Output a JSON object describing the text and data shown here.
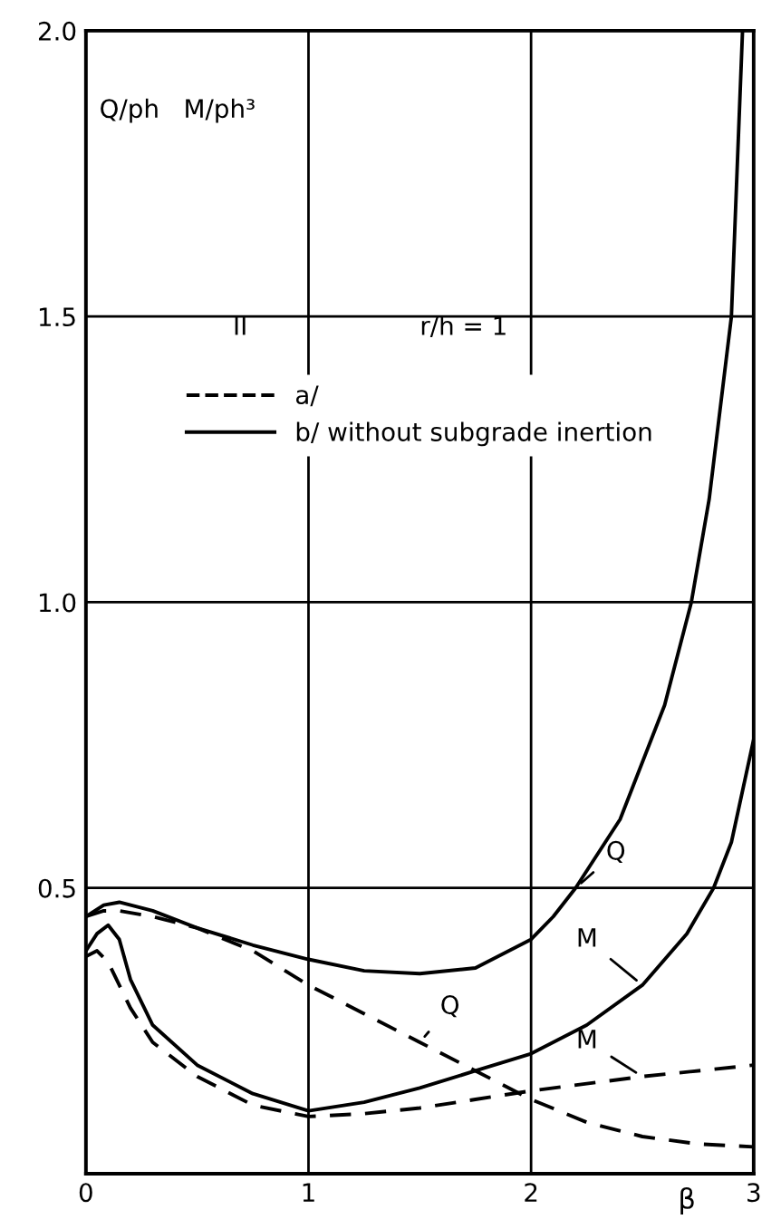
{
  "chart_data": {
    "type": "line",
    "xlabel": "β",
    "ylabel": "Q/ph   M/ph³",
    "annotations": [
      "II",
      "r/h = 1",
      {
        "text": "Q",
        "x": 2.2,
        "y": 0.5
      },
      {
        "text": "M",
        "x": 2.5,
        "y": 0.33
      },
      {
        "text": "Q",
        "x": 1.5,
        "y": 0.23
      },
      {
        "text": "M",
        "x": 2.5,
        "y": 0.17
      }
    ],
    "series": [
      {
        "name": "a/",
        "color": "#000000",
        "line_style": "dashed",
        "x": [
          0,
          0.08,
          0.15,
          0.3,
          0.5,
          0.75,
          1,
          1.25,
          1.5,
          1.75,
          2,
          2.25,
          2.5,
          2.75,
          3
        ],
        "values": [
          0.45,
          0.46,
          0.46,
          0.45,
          0.43,
          0.39,
          0.33,
          0.28,
          0.23,
          0.18,
          0.13,
          0.09,
          0.065,
          0.052,
          0.047
        ]
      },
      {
        "color": "#000000",
        "line_style": "dashed",
        "x": [
          0,
          0.05,
          0.1,
          0.15,
          0.2,
          0.3,
          0.5,
          0.75,
          1,
          1.25,
          1.5,
          1.75,
          2,
          2.5,
          3
        ],
        "values": [
          0.38,
          0.39,
          0.37,
          0.33,
          0.29,
          0.23,
          0.17,
          0.12,
          0.1,
          0.105,
          0.115,
          0.13,
          0.145,
          0.17,
          0.19
        ]
      },
      {
        "name": "b/ without subgrade inertion",
        "color": "#000000",
        "line_style": "solid",
        "x": [
          0,
          0.08,
          0.15,
          0.3,
          0.5,
          0.75,
          1,
          1.25,
          1.5,
          1.75,
          2,
          2.1,
          2.2,
          2.4,
          2.6,
          2.72,
          2.8,
          2.9,
          2.95
        ],
        "values": [
          0.45,
          0.47,
          0.475,
          0.46,
          0.43,
          0.4,
          0.375,
          0.355,
          0.35,
          0.36,
          0.41,
          0.45,
          0.5,
          0.62,
          0.82,
          1.0,
          1.18,
          1.5,
          2.0
        ]
      },
      {
        "color": "#000000",
        "line_style": "solid",
        "x": [
          0,
          0.05,
          0.1,
          0.15,
          0.2,
          0.3,
          0.5,
          0.75,
          1,
          1.25,
          1.5,
          1.75,
          2,
          2.25,
          2.5,
          2.7,
          2.82,
          2.9,
          3
        ],
        "values": [
          0.39,
          0.42,
          0.435,
          0.41,
          0.34,
          0.26,
          0.19,
          0.14,
          0.11,
          0.125,
          0.15,
          0.18,
          0.21,
          0.26,
          0.33,
          0.42,
          0.5,
          0.58,
          0.76
        ]
      }
    ],
    "xlim": [
      0,
      3
    ],
    "ylim": [
      0,
      2.0
    ],
    "xticks": [
      0,
      1,
      2,
      3
    ],
    "yticks": [
      {
        "value": 0.5,
        "label": "0.5"
      },
      {
        "value": 1,
        "label": "1.0"
      },
      {
        "value": 1.5,
        "label": "1.5"
      },
      {
        "value": 2,
        "label": "2.0"
      }
    ],
    "grid": true,
    "legend": "top"
  }
}
